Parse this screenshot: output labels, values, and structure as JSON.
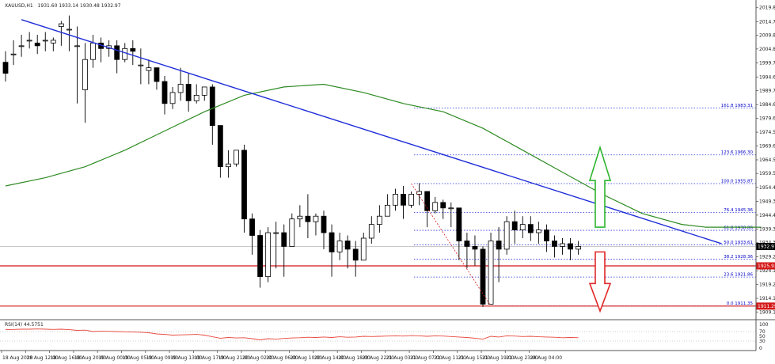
{
  "chart_data": [
    {
      "type": "candlestick",
      "title": "XAUUSD,H1",
      "ohlc_header": "1931.60 1933.14 1930.48 1932.97",
      "price_axis_ticks": [
        "2019.85",
        "2014.70",
        "2009.80",
        "2004.85",
        "1999.75",
        "1994.65",
        "1989.70",
        "1984.60",
        "1979.65",
        "1974.55",
        "1969.60",
        "1964.50",
        "1959.55",
        "1954.45",
        "1949.35",
        "1944.40",
        "1939.30",
        "1934.35",
        "1929.25",
        "1924.15",
        "1919.20",
        "1914.10",
        "1909.15"
      ],
      "time_axis_ticks": [
        "18 Aug 2020",
        "18 Aug 12:00",
        "18 Aug 16:00",
        "18 Aug 20:00",
        "19 Aug 00:00",
        "19 Aug 05:00",
        "19 Aug 09:00",
        "19 Aug 13:00",
        "19 Aug 17:00",
        "19 Aug 21:00",
        "20 Aug 02:00",
        "20 Aug 06:00",
        "20 Aug 10:00",
        "20 Aug 14:00",
        "20 Aug 18:00",
        "20 Aug 22:00",
        "21 Aug 03:00",
        "21 Aug 07:00",
        "21 Aug 11:00",
        "21 Aug 15:00",
        "21 Aug 19:00",
        "21 Aug 23:00",
        "24 Aug 04:00"
      ],
      "ylim": [
        1907.5,
        2021.5
      ],
      "fib_levels": [
        {
          "label": "161.8 1983.31",
          "value": 1983.31
        },
        {
          "label": "123.6 1966.30",
          "value": 1966.3
        },
        {
          "label": "100.0 1955.87",
          "value": 1955.87
        },
        {
          "label": "76.4 1945.36",
          "value": 1945.36
        },
        {
          "label": "61.8 1938.86",
          "value": 1938.86
        },
        {
          "label": "50.0 1933.61",
          "value": 1933.61
        },
        {
          "label": "38.2 1928.36",
          "value": 1928.36
        },
        {
          "label": "23.6 1921.86",
          "value": 1921.86
        },
        {
          "label": "0.0 1911.35",
          "value": 1911.35
        }
      ],
      "price_boxes": [
        {
          "label": "1932.97",
          "value": 1932.97,
          "color": "#000000"
        },
        {
          "label": "1925.93",
          "value": 1925.93,
          "color": "#d41717"
        },
        {
          "label": "1911.29",
          "value": 1911.29,
          "color": "#d41717"
        }
      ],
      "support_lines": [
        1925.93,
        1911.29
      ],
      "current_price_line": 1932.97,
      "trendline": {
        "from": [
          2,
          2015.5
        ],
        "to": [
          90,
          1934.0
        ],
        "color": "#1f2ed8"
      },
      "moving_average": {
        "color": "#2e8b23",
        "points": [
          [
            0,
            1955
          ],
          [
            5,
            1958
          ],
          [
            10,
            1962
          ],
          [
            15,
            1968
          ],
          [
            20,
            1975
          ],
          [
            25,
            1982
          ],
          [
            30,
            1988
          ],
          [
            35,
            1991
          ],
          [
            40,
            1992
          ],
          [
            45,
            1989
          ],
          [
            50,
            1985
          ],
          [
            55,
            1982
          ],
          [
            60,
            1976
          ],
          [
            65,
            1968
          ],
          [
            70,
            1960
          ],
          [
            75,
            1952
          ],
          [
            80,
            1945
          ],
          [
            85,
            1941
          ],
          [
            88,
            1940
          ],
          [
            95,
            1940
          ]
        ]
      },
      "candles": [
        [
          2000,
          2004,
          1996,
          1993
        ],
        [
          2003,
          2008,
          2003,
          1999
        ],
        [
          2006,
          2010,
          2006,
          2002
        ],
        [
          2008,
          2011,
          2008,
          2005
        ],
        [
          2007,
          2010,
          2006,
          2003
        ],
        [
          2008,
          2011,
          2008,
          2004
        ],
        [
          2007,
          2009,
          2008,
          2004
        ],
        [
          2013,
          2015,
          2014,
          2006
        ],
        [
          2012,
          2017,
          2012,
          2004
        ],
        [
          2006,
          2013,
          2006,
          1985
        ],
        [
          1990,
          2007,
          2001,
          1978
        ],
        [
          2001,
          2010,
          2007,
          1998
        ],
        [
          2007,
          2009,
          2005,
          2000
        ],
        [
          2005,
          2008,
          2006,
          2002
        ],
        [
          2006,
          2008,
          2001,
          1996
        ],
        [
          2001,
          2007,
          2005,
          2000
        ],
        [
          2005,
          2008,
          2004,
          1999
        ],
        [
          1999,
          2005,
          1999,
          1992
        ],
        [
          1997,
          2001,
          1998,
          1992
        ],
        [
          1998,
          1997,
          1993,
          1990
        ],
        [
          1993,
          1995,
          1985,
          1981
        ],
        [
          1985,
          1991,
          1989,
          1983
        ],
        [
          1989,
          1998,
          1992,
          1986
        ],
        [
          1992,
          1996,
          1986,
          1982
        ],
        [
          1986,
          1992,
          1988,
          1985
        ],
        [
          1988,
          1990,
          1991,
          1986
        ],
        [
          1991,
          1992,
          1977,
          1970
        ],
        [
          1977,
          1968,
          1962,
          1958
        ],
        [
          1962,
          1968,
          1963,
          1958
        ],
        [
          1963,
          1968,
          1968,
          1962
        ],
        [
          1968,
          1970,
          1943,
          1938
        ],
        [
          1943,
          1945,
          1937,
          1930
        ],
        [
          1937,
          1939,
          1922,
          1918
        ],
        [
          1922,
          1940,
          1938,
          1920
        ],
        [
          1938,
          1942,
          1938,
          1925
        ],
        [
          1938,
          1941,
          1933,
          1922
        ],
        [
          1933,
          1945,
          1943,
          1935
        ],
        [
          1943,
          1948,
          1944,
          1940
        ],
        [
          1944,
          1952,
          1942,
          1936
        ],
        [
          1942,
          1945,
          1944,
          1937
        ],
        [
          1944,
          1946,
          1938,
          1932
        ],
        [
          1938,
          1941,
          1931,
          1922
        ],
        [
          1931,
          1938,
          1935,
          1928
        ],
        [
          1935,
          1937,
          1932,
          1925
        ],
        [
          1932,
          1935,
          1928,
          1922
        ],
        [
          1928,
          1938,
          1936,
          1928
        ],
        [
          1936,
          1944,
          1941,
          1934
        ],
        [
          1941,
          1948,
          1944,
          1938
        ],
        [
          1944,
          1952,
          1948,
          1944
        ],
        [
          1948,
          1954,
          1952,
          1946
        ],
        [
          1952,
          1955,
          1948,
          1943
        ],
        [
          1948,
          1953,
          1952,
          1947
        ],
        [
          1952,
          1956,
          1953,
          1948
        ],
        [
          1953,
          1950,
          1946,
          1940
        ],
        [
          1946,
          1951,
          1949,
          1945
        ],
        [
          1949,
          1950,
          1947,
          1943
        ],
        [
          1947,
          1949,
          1947,
          1940
        ],
        [
          1947,
          1946,
          1935,
          1928
        ],
        [
          1935,
          1938,
          1933,
          1925
        ],
        [
          1933,
          1937,
          1932,
          1926
        ],
        [
          1932,
          1933,
          1912,
          1911
        ],
        [
          1912,
          1938,
          1935,
          1914
        ],
        [
          1935,
          1940,
          1932,
          1920
        ],
        [
          1932,
          1944,
          1942,
          1930
        ],
        [
          1942,
          1946,
          1939,
          1934
        ],
        [
          1939,
          1944,
          1941,
          1936
        ],
        [
          1941,
          1944,
          1938,
          1935
        ],
        [
          1938,
          1942,
          1939,
          1934
        ],
        [
          1939,
          1941,
          1935,
          1931
        ],
        [
          1935,
          1937,
          1933,
          1929
        ],
        [
          1933,
          1936,
          1934,
          1930
        ],
        [
          1934,
          1936,
          1932,
          1928
        ],
        [
          1932,
          1935,
          1933,
          1930
        ]
      ]
    },
    {
      "type": "line",
      "title": "RSI(14) 44.5751",
      "y_axis_ticks": [
        "100",
        "70",
        "50",
        "30",
        "0"
      ],
      "ylim": [
        0,
        100
      ],
      "levels": [
        70,
        30
      ],
      "color": "#e8483c",
      "values": [
        78,
        79,
        80,
        80,
        81,
        80,
        79,
        80,
        78,
        75,
        76,
        70,
        72,
        71,
        70,
        69,
        68,
        67,
        65,
        60,
        58,
        55,
        56,
        57,
        58,
        55,
        48,
        42,
        45,
        43,
        44,
        40,
        35,
        40,
        38,
        41,
        43,
        44,
        46,
        45,
        47,
        45,
        48,
        46,
        47,
        50,
        49,
        50,
        51,
        52,
        51,
        53,
        52,
        50,
        52,
        51,
        49,
        47,
        45,
        42,
        38,
        50,
        47,
        52,
        51,
        49,
        50,
        48,
        47,
        46,
        44,
        45,
        44
      ]
    }
  ]
}
